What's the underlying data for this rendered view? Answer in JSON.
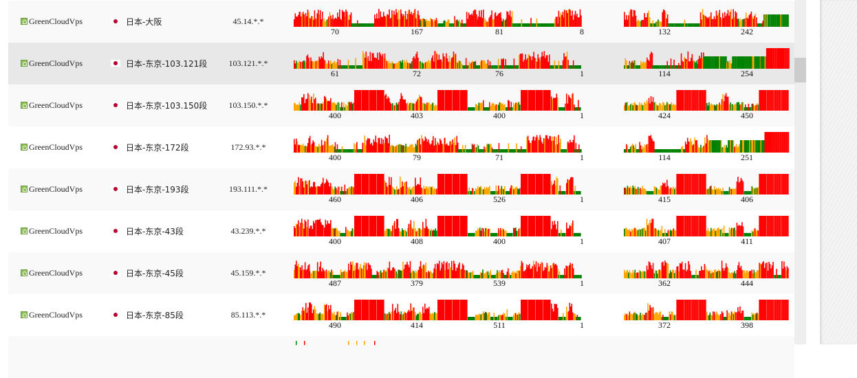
{
  "colors": {
    "good": "#008000",
    "mid": "#ffa500",
    "bad": "#ff0000",
    "flag_red": "#bc002d",
    "hover_row": "#e8e8e8"
  },
  "icons": {
    "provider": "greencloud-house-icon",
    "flag": "japan-flag-icon"
  },
  "rows": [
    {
      "provider": "GreenCloudVps",
      "location": "日本-大阪",
      "ip": "45.14.*.*",
      "chart1": {
        "labels": [
          "70",
          "167",
          "81",
          "8"
        ],
        "pattern": "rrrrrm rrrr gggg rrrrrrrrm mmgmgmg rrrmrrmr gggggggg rrrr"
      },
      "chart2": {
        "labels": [
          "132",
          "242"
        ],
        "pattern": "rrmrgmr ggggg rrrrrrm rrgGGGG"
      }
    },
    {
      "provider": "GreenCloudVps",
      "location": "日本-东京-103.121段",
      "ip": "103.121.*.*",
      "chart1": {
        "labels": [
          "61",
          "72",
          "76",
          "1"
        ],
        "pattern": "mmrmrmm gggg rrrr mmmmrmm rrrr mgmgmg gggg rrrr rggrgg"
      },
      "chart2": {
        "labels": [
          "114",
          "254"
        ],
        "pattern": "gmgmrg gggg rrmr GGGGmGGG GGG RRRR"
      }
    },
    {
      "provider": "GreenCloudVps",
      "location": "日本-东京-103.150段",
      "ip": "103.150.*.*",
      "chart1": {
        "labels": [
          "400",
          "403",
          "400",
          "1"
        ],
        "pattern": "mrrmrmgm RRRR rmrmrmm RRRR gmgmmgm RRRR rgrg"
      },
      "chart2": {
        "labels": [
          "424",
          "450"
        ],
        "pattern": "mmmrmmm RRRR mmrmmgm RRRR"
      }
    },
    {
      "provider": "GreenCloudVps",
      "location": "日本-东京-172段",
      "ip": "172.93.*.*",
      "chart1": {
        "labels": [
          "400",
          "79",
          "71",
          "1"
        ],
        "pattern": "rmrmrm gggg rrrr mmmmrr rrrr ggmgmg gggg rrrr rgrg"
      },
      "chart2": {
        "labels": [
          "114",
          "251"
        ],
        "pattern": "gmgmrg gggg rrmr GGmGmG GGG RRRR"
      }
    },
    {
      "provider": "GreenCloudVps",
      "location": "日本-东京-193段",
      "ip": "193.111.*.*",
      "chart1": {
        "labels": [
          "460",
          "406",
          "526",
          "1"
        ],
        "pattern": "rrrrrmgm RRRR rmrmrmm RRRR gmmgmgm RRRR rgrg"
      },
      "chart2": {
        "labels": [
          "415",
          "406"
        ],
        "pattern": "mmmgmrm RRRR mmgmrgm RRRR"
      }
    },
    {
      "provider": "GreenCloudVps",
      "location": "日本-东京-43段",
      "ip": "43.239.*.*",
      "chart1": {
        "labels": [
          "400",
          "408",
          "400",
          "1"
        ],
        "pattern": "rrrrrmgm RRRR mrmrmrm RRRR gmmgmgm RRRR rgrg"
      },
      "chart2": {
        "labels": [
          "407",
          "411"
        ],
        "pattern": "mmmrmgm RRRR mmgmrgm RRRR"
      }
    },
    {
      "provider": "GreenCloudVps",
      "location": "日本-东京-45段",
      "ip": "45.159.*.*",
      "chart1": {
        "labels": [
          "487",
          "379",
          "539",
          "1"
        ],
        "pattern": "rrmrmgm rrrg mrmrmrm rrrr mgmgmgm rrrr rgrg"
      },
      "chart2": {
        "labels": [
          "362",
          "444"
        ],
        "pattern": "mmmrmrm rrgr mmrmrmm rrgr"
      }
    },
    {
      "provider": "GreenCloudVps",
      "location": "日本-东京-85段",
      "ip": "85.113.*.*",
      "chart1": {
        "labels": [
          "490",
          "414",
          "511",
          "1"
        ],
        "pattern": "mrrmrmgm RRRR mrmrmrm RRRR gmmgmgm RRRR rgrg"
      },
      "chart2": {
        "labels": [
          "372",
          "398"
        ],
        "pattern": "mmmrmgm RRRR mmgmrgm RRRR"
      }
    }
  ]
}
